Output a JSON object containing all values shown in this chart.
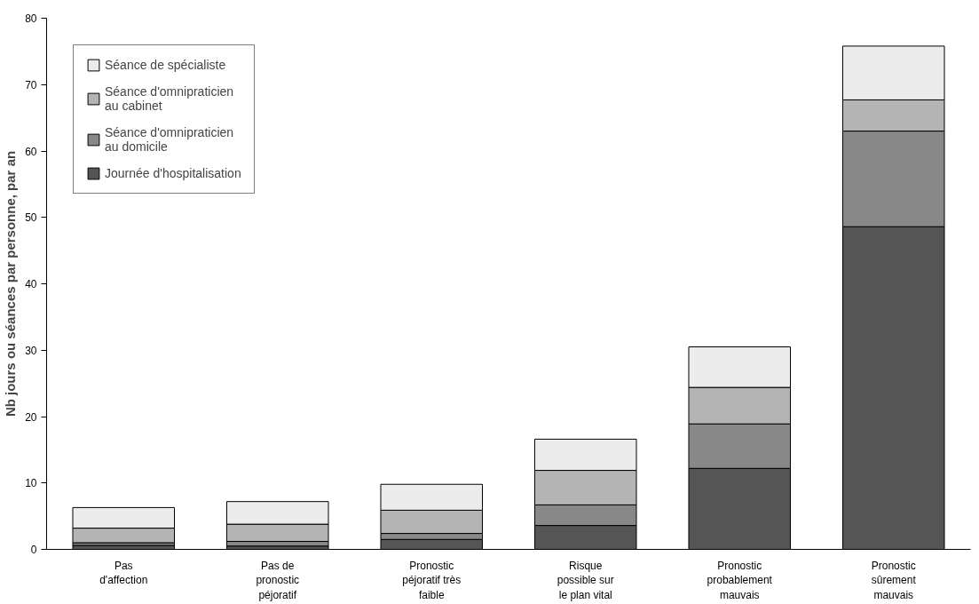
{
  "chart_data": {
    "type": "bar",
    "stacked": true,
    "ylabel": "Nb jours ou séances par personne, par an",
    "categories": [
      "Pas d'affection",
      "Pas de pronostic péjoratif",
      "Pronostic péjoratif très faible",
      "Risque possible sur le plan vital",
      "Pronostic probablement mauvais",
      "Pronostic sûrement mauvais"
    ],
    "series": [
      {
        "name": "Journée d'hospitalisation",
        "color": "#555555",
        "values": [
          0.6,
          0.5,
          1.5,
          3.6,
          12.2,
          48.6
        ]
      },
      {
        "name": "Séance d'omnipraticien au domicile",
        "color": "#888888",
        "values": [
          0.4,
          0.7,
          0.9,
          3.1,
          6.7,
          14.4
        ]
      },
      {
        "name": "Séance d'omnipraticien au cabinet",
        "color": "#b4b4b4",
        "values": [
          2.2,
          2.6,
          3.5,
          5.2,
          5.5,
          4.7
        ]
      },
      {
        "name": "Séance de spécialiste",
        "color": "#ececec",
        "values": [
          3.1,
          3.4,
          3.9,
          4.7,
          6.1,
          8.1
        ]
      }
    ],
    "ylim": [
      0,
      80
    ],
    "yticks": [
      0,
      10,
      20,
      30,
      40,
      50,
      60,
      70,
      80
    ],
    "grid": false,
    "legend": "top left"
  }
}
